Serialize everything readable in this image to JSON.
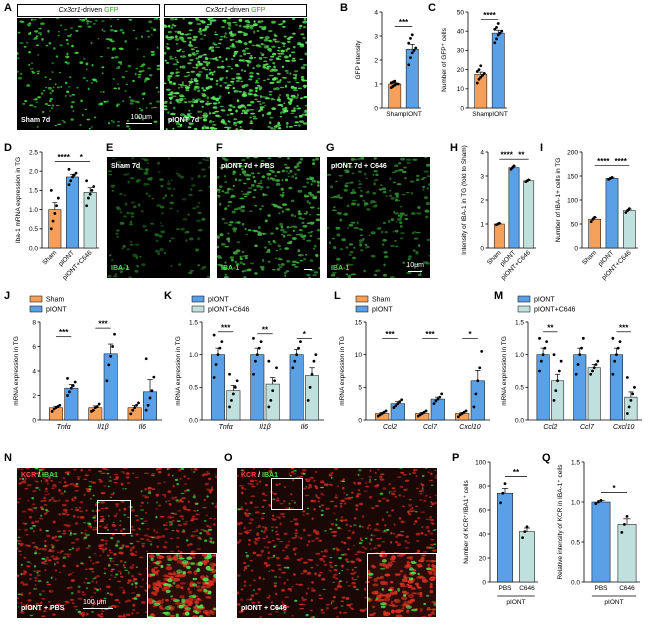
{
  "panels": {
    "A": {
      "letter": "A",
      "left_head": "Cx3cr1-driven GFP",
      "right_head": "Cx3cr1-driven GFP",
      "head_italic": "Cx3cr1",
      "head_mid": "-driven ",
      "head_green": "GFP",
      "left_label": "Sham 7d",
      "right_label": "pIONT 7d",
      "scale": "100μm"
    },
    "E": {
      "letter": "E",
      "label": "Sham 7d",
      "stain": "IBA-1"
    },
    "F": {
      "letter": "F",
      "label": "pIONT 7d + PBS",
      "stain": "IBA-1"
    },
    "G": {
      "letter": "G",
      "label": "pIONT 7d + C646",
      "stain": "IBA-1",
      "scale": "10μm"
    },
    "N": {
      "letter": "N",
      "stain_red": "KCR",
      "stain_sep": " / ",
      "stain_green": "IBA1",
      "label": "pIONT + PBS",
      "scale": "100 μm"
    },
    "O": {
      "letter": "O",
      "stain_red": "KCR",
      "stain_sep": " / ",
      "stain_green": "IBA1",
      "label": "pIONT + C646"
    }
  },
  "colors": {
    "sham": "#f5a05a",
    "piont": "#5aa0e6",
    "c646": "#bfe0dc",
    "sig": "#000000"
  },
  "chart_data": [
    {
      "id": "B",
      "letter": "B",
      "type": "bar",
      "categories": [
        "Sham",
        "pIONT"
      ],
      "values": [
        1.0,
        2.45
      ],
      "errors": [
        0.05,
        0.2
      ],
      "ylabel": "GFP intensity",
      "ylim": [
        0,
        4
      ],
      "yticks": [
        0,
        1,
        2,
        3,
        4
      ],
      "colors": [
        "#f5a05a",
        "#5aa0e6"
      ],
      "points": [
        [
          0.85,
          0.9,
          0.95,
          1.0,
          1.0,
          1.05,
          1.08,
          1.12
        ],
        [
          1.8,
          2.1,
          2.3,
          2.4,
          2.5,
          2.7,
          2.9,
          3.05
        ]
      ],
      "sig": [
        {
          "from": 0,
          "to": 1,
          "label": "***",
          "y": 3.4
        }
      ]
    },
    {
      "id": "C",
      "letter": "C",
      "type": "bar",
      "categories": [
        "Sham",
        "pIONT"
      ],
      "values": [
        17.5,
        39.0
      ],
      "errors": [
        1.2,
        1.5
      ],
      "ylabel": "Number of GFP⁺ cells",
      "ylim": [
        0,
        50
      ],
      "yticks": [
        0,
        10,
        20,
        30,
        40,
        50
      ],
      "colors": [
        "#f5a05a",
        "#5aa0e6"
      ],
      "points": [
        [
          13,
          15,
          16,
          17,
          18,
          19,
          20,
          22
        ],
        [
          34,
          36,
          38,
          39,
          40,
          41,
          42,
          44
        ]
      ],
      "sig": [
        {
          "from": 0,
          "to": 1,
          "label": "****",
          "y": 46
        }
      ]
    },
    {
      "id": "D",
      "letter": "D",
      "type": "bar",
      "categories": [
        "Sham",
        "pIONT",
        "pIONT+C646"
      ],
      "values": [
        1.0,
        1.85,
        1.45
      ],
      "errors": [
        0.18,
        0.07,
        0.12
      ],
      "ylabel": "Iba-1 mRNA expression in TG",
      "ylim": [
        0,
        2.5
      ],
      "yticks": [
        0.0,
        0.5,
        1.0,
        1.5,
        2.0,
        2.5
      ],
      "colors": [
        "#f5a05a",
        "#5aa0e6",
        "#bfe0dc"
      ],
      "points": [
        [
          0.5,
          0.7,
          0.9,
          1.1,
          1.3,
          1.5
        ],
        [
          1.65,
          1.75,
          1.85,
          1.9,
          1.95,
          2.05
        ],
        [
          1.1,
          1.3,
          1.4,
          1.5,
          1.6,
          1.75
        ]
      ],
      "sig": [
        {
          "from": 0,
          "to": 1,
          "label": "****",
          "y": 2.25
        },
        {
          "from": 1,
          "to": 2,
          "label": "*",
          "y": 2.25
        }
      ]
    },
    {
      "id": "H",
      "letter": "H",
      "type": "bar",
      "categories": [
        "Sham",
        "pIONT",
        "pIONT+C646"
      ],
      "values": [
        1.0,
        3.35,
        2.8
      ],
      "errors": [
        0.03,
        0.06,
        0.04
      ],
      "ylabel": "Intensity of IBA-1 in TG (fold to Sham)",
      "ylim": [
        0,
        4
      ],
      "yticks": [
        0,
        1,
        2,
        3,
        4
      ],
      "colors": [
        "#f5a05a",
        "#5aa0e6",
        "#bfe0dc"
      ],
      "points": [
        [
          0.97,
          1.0,
          1.03
        ],
        [
          3.28,
          3.35,
          3.42
        ],
        [
          2.76,
          2.8,
          2.84
        ]
      ],
      "sig": [
        {
          "from": 0,
          "to": 1,
          "label": "****",
          "y": 3.7
        },
        {
          "from": 1,
          "to": 2,
          "label": "**",
          "y": 3.7
        }
      ]
    },
    {
      "id": "I",
      "letter": "I",
      "type": "bar",
      "categories": [
        "Sham",
        "pIONT",
        "pIONT+C646"
      ],
      "values": [
        60,
        145,
        78
      ],
      "errors": [
        3,
        2,
        3
      ],
      "ylabel": "Number of IBA-1+ cells in TG",
      "ylim": [
        0,
        200
      ],
      "yticks": [
        0,
        50,
        100,
        150,
        200
      ],
      "colors": [
        "#f5a05a",
        "#5aa0e6",
        "#bfe0dc"
      ],
      "points": [
        [
          55,
          60,
          64
        ],
        [
          143,
          145,
          147
        ],
        [
          74,
          78,
          82
        ]
      ],
      "sig": [
        {
          "from": 0,
          "to": 1,
          "label": "****",
          "y": 172
        },
        {
          "from": 1,
          "to": 2,
          "label": "****",
          "y": 172
        }
      ]
    },
    {
      "id": "J",
      "letter": "J",
      "type": "grouped-bar",
      "groups": [
        "Tnfα",
        "Il1β",
        "Il6"
      ],
      "series": [
        {
          "name": "Sham",
          "color": "#f5a05a",
          "values": [
            1.0,
            1.0,
            1.0
          ],
          "errors": [
            0.12,
            0.15,
            0.2
          ],
          "points": [
            [
              0.7,
              0.9,
              1.0,
              1.1,
              1.2
            ],
            [
              0.7,
              0.8,
              1.0,
              1.1,
              1.3
            ],
            [
              0.5,
              0.8,
              1.0,
              1.2,
              1.4
            ]
          ]
        },
        {
          "name": "pIONT",
          "color": "#5aa0e6",
          "values": [
            2.6,
            5.4,
            2.3
          ],
          "errors": [
            0.3,
            0.8,
            1.0
          ],
          "points": [
            [
              2.0,
              2.3,
              2.6,
              2.8,
              3.1,
              3.4
            ],
            [
              3.2,
              4.5,
              5.2,
              6.0,
              7.0
            ],
            [
              0.8,
              1.2,
              1.8,
              2.4,
              3.5,
              5.0
            ]
          ]
        }
      ],
      "ylabel": "mRNA expression in TG",
      "ylim": [
        0,
        8
      ],
      "yticks": [
        0,
        2,
        4,
        6,
        8
      ],
      "sig": [
        {
          "group": 0,
          "label": "***",
          "y": 6.8
        },
        {
          "group": 1,
          "label": "***",
          "y": 7.5
        }
      ]
    },
    {
      "id": "K",
      "letter": "K",
      "type": "grouped-bar",
      "groups": [
        "Tnfα",
        "Il1β",
        "Il6"
      ],
      "series": [
        {
          "name": "pIONT",
          "color": "#5aa0e6",
          "values": [
            1.0,
            1.0,
            1.0
          ],
          "errors": [
            0.1,
            0.1,
            0.08
          ],
          "points": [
            [
              0.65,
              0.85,
              1.0,
              1.1,
              1.2,
              1.3
            ],
            [
              0.7,
              0.9,
              1.0,
              1.1,
              1.2,
              1.25
            ],
            [
              0.8,
              0.9,
              1.0,
              1.1,
              1.2
            ]
          ]
        },
        {
          "name": "pIONT+C646",
          "color": "#bfe0dc",
          "values": [
            0.45,
            0.55,
            0.68
          ],
          "errors": [
            0.08,
            0.1,
            0.12
          ],
          "points": [
            [
              0.2,
              0.3,
              0.4,
              0.5,
              0.6,
              0.7
            ],
            [
              0.2,
              0.3,
              0.45,
              0.6,
              0.8,
              0.9
            ],
            [
              0.3,
              0.5,
              0.7,
              0.9,
              1.0
            ]
          ]
        }
      ],
      "ylabel": "mRNA expression in TG",
      "ylim": [
        0,
        1.5
      ],
      "yticks": [
        0.0,
        0.5,
        1.0,
        1.5
      ],
      "sig": [
        {
          "group": 0,
          "label": "***",
          "y": 1.35
        },
        {
          "group": 1,
          "label": "**",
          "y": 1.32
        },
        {
          "group": 2,
          "label": "*",
          "y": 1.25
        }
      ]
    },
    {
      "id": "L",
      "letter": "L",
      "type": "grouped-bar",
      "groups": [
        "Ccl2",
        "Ccl7",
        "Cxcl10"
      ],
      "series": [
        {
          "name": "Sham",
          "color": "#f5a05a",
          "values": [
            1.0,
            1.0,
            1.0
          ],
          "errors": [
            0.15,
            0.15,
            0.15
          ],
          "points": [
            [
              0.6,
              0.8,
              1.0,
              1.2,
              1.4
            ],
            [
              0.6,
              0.8,
              1.0,
              1.2,
              1.4
            ],
            [
              0.5,
              0.8,
              1.0,
              1.2,
              1.4
            ]
          ]
        },
        {
          "name": "pIONT",
          "color": "#5aa0e6",
          "values": [
            2.5,
            3.2,
            6.0
          ],
          "errors": [
            0.3,
            0.3,
            1.6
          ],
          "points": [
            [
              1.9,
              2.2,
              2.5,
              2.8,
              3.1
            ],
            [
              2.5,
              2.9,
              3.2,
              3.5,
              4.0
            ],
            [
              2.0,
              4.0,
              6.0,
              8.0,
              10.5
            ]
          ]
        }
      ],
      "ylabel": "mRNA expression in TG",
      "ylim": [
        0,
        15
      ],
      "yticks": [
        0,
        5,
        10,
        15
      ],
      "sig": [
        {
          "group": 0,
          "label": "***",
          "y": 12.5
        },
        {
          "group": 1,
          "label": "***",
          "y": 12.5
        },
        {
          "group": 2,
          "label": "*",
          "y": 12.5
        }
      ]
    },
    {
      "id": "M",
      "letter": "M",
      "type": "grouped-bar",
      "groups": [
        "Ccl2",
        "Ccl7",
        "Cxcl10"
      ],
      "series": [
        {
          "name": "pIONT",
          "color": "#5aa0e6",
          "values": [
            1.0,
            1.0,
            1.0
          ],
          "errors": [
            0.1,
            0.1,
            0.1
          ],
          "points": [
            [
              0.75,
              0.9,
              1.0,
              1.1,
              1.2,
              1.25
            ],
            [
              0.7,
              0.85,
              1.0,
              1.1,
              1.25
            ],
            [
              0.7,
              0.9,
              1.0,
              1.1,
              1.2,
              1.25
            ]
          ]
        },
        {
          "name": "pIONT+C646",
          "color": "#bfe0dc",
          "values": [
            0.6,
            0.8,
            0.35
          ],
          "errors": [
            0.1,
            0.05,
            0.08
          ],
          "points": [
            [
              0.3,
              0.45,
              0.6,
              0.75,
              0.9,
              1.0
            ],
            [
              0.7,
              0.75,
              0.8,
              0.85,
              0.9
            ],
            [
              0.1,
              0.2,
              0.3,
              0.4,
              0.5,
              0.65
            ]
          ]
        }
      ],
      "ylabel": "mRNA expression in TG",
      "ylim": [
        0,
        1.5
      ],
      "yticks": [
        0.0,
        0.5,
        1.0,
        1.5
      ],
      "sig": [
        {
          "group": 0,
          "label": "**",
          "y": 1.35
        },
        {
          "group": 2,
          "label": "***",
          "y": 1.35
        }
      ]
    },
    {
      "id": "P",
      "letter": "P",
      "type": "bar",
      "categories": [
        "PBS",
        "C646"
      ],
      "values": [
        74,
        42
      ],
      "errors": [
        4,
        3
      ],
      "ylabel": "Number of KCR⁺/IBA1⁺ cells",
      "ylim": [
        0,
        100
      ],
      "yticks": [
        0,
        20,
        40,
        60,
        80,
        100
      ],
      "colors": [
        "#5aa0e6",
        "#bfe0dc"
      ],
      "points": [
        [
          66,
          74,
          82
        ],
        [
          37,
          42,
          46
        ]
      ],
      "sig": [
        {
          "from": 0,
          "to": 1,
          "label": "**",
          "y": 88
        }
      ],
      "group_label": "pIONT"
    },
    {
      "id": "Q",
      "letter": "Q",
      "type": "bar",
      "categories": [
        "PBS",
        "C646"
      ],
      "values": [
        1.0,
        0.72
      ],
      "errors": [
        0.02,
        0.07
      ],
      "ylabel": "Relative intensity of KCR in IBA-1⁺ cells",
      "ylim": [
        0,
        1.5
      ],
      "yticks": [
        0.0,
        0.5,
        1.0,
        1.5
      ],
      "colors": [
        "#5aa0e6",
        "#bfe0dc"
      ],
      "points": [
        [
          0.98,
          1.0,
          1.02
        ],
        [
          0.62,
          0.72,
          0.82
        ]
      ],
      "sig": [
        {
          "from": 0,
          "to": 1,
          "label": "*",
          "y": 1.12
        }
      ],
      "group_label": "pIONT"
    }
  ]
}
